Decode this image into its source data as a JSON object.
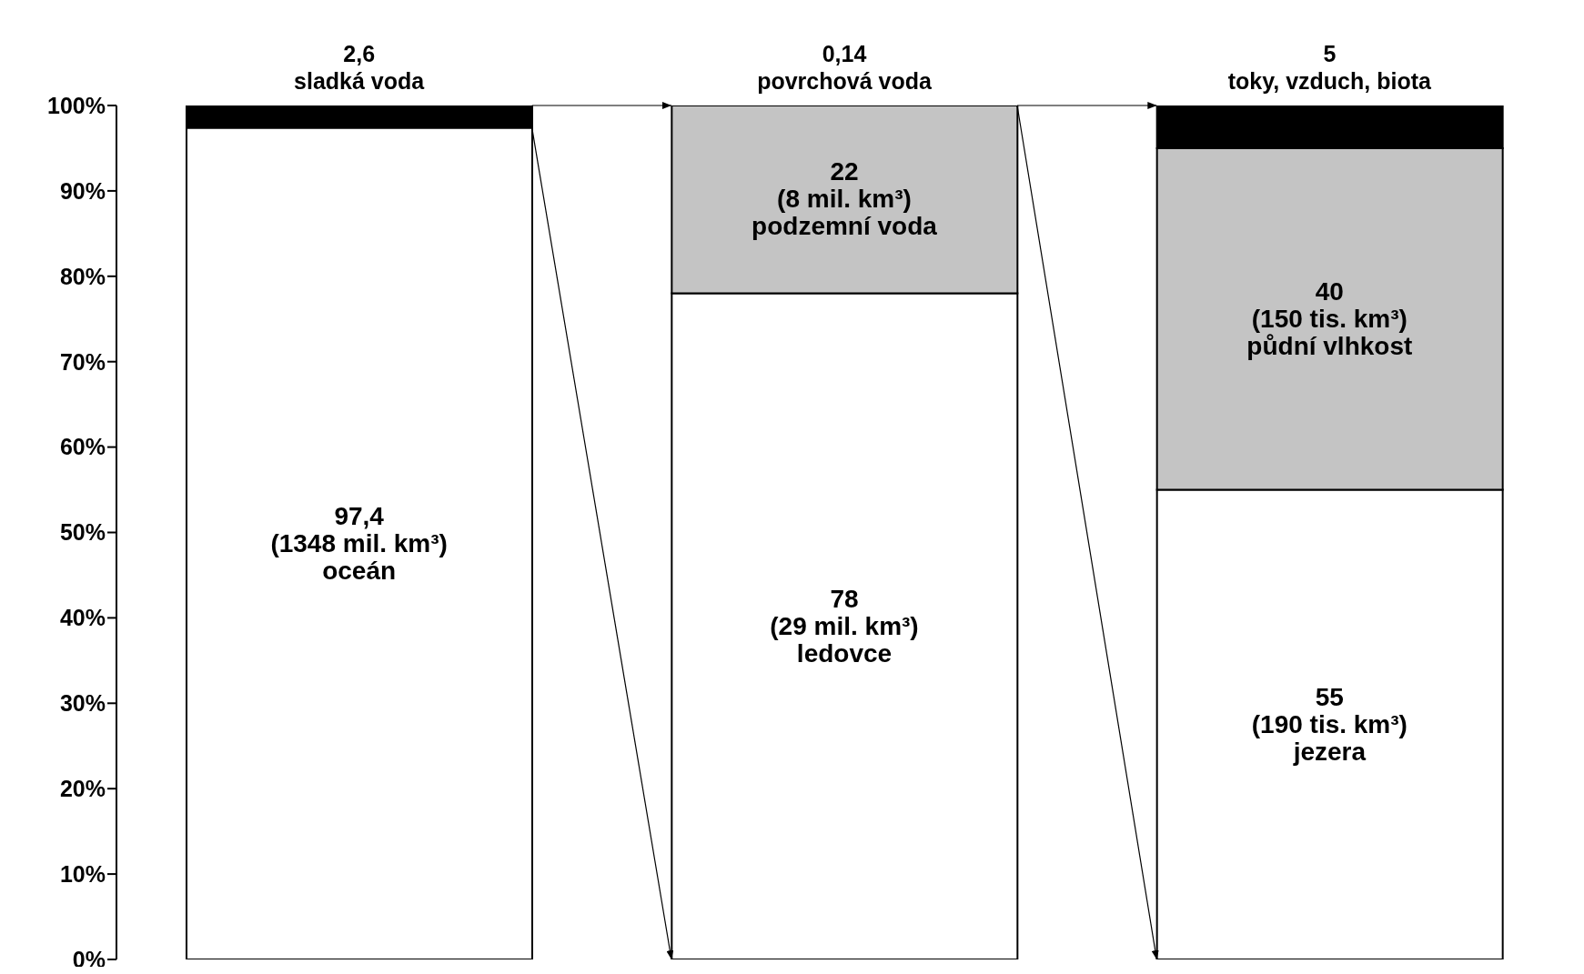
{
  "chart_data": {
    "type": "bar",
    "stacked": true,
    "categories": [
      null,
      null,
      null
    ],
    "series": [
      {
        "color": "#ffffff",
        "values": [
          97.4,
          78,
          55
        ],
        "value_labels": [
          "97,4\n(1348 mil. km³)\noceán",
          "78\n(29 mil. km³)\nledovce",
          "55\n(190 tis. km³)\njezera"
        ]
      },
      {
        "color": "#c4c4c4",
        "values": [
          null,
          22,
          40
        ],
        "value_labels": [
          null,
          "22\n(8 mil. km³)\npodzemní voda",
          "40\n(150 tis. km³)\npůdní vlhkost"
        ]
      },
      {
        "color": "#000000",
        "values": [
          2.6,
          0.14,
          5
        ],
        "value_labels": [
          "2,6\nsladká voda",
          "0,14\npovrchová voda",
          "5\ntoky, vzduch, biota"
        ]
      }
    ],
    "ylim": [
      0,
      100
    ],
    "yticks": [
      {
        "value": 0,
        "label": "0%"
      },
      {
        "value": 10,
        "label": "10%"
      },
      {
        "value": 20,
        "label": "20%"
      },
      {
        "value": 30,
        "label": "30%"
      },
      {
        "value": 40,
        "label": "40%"
      },
      {
        "value": 50,
        "label": "50%"
      },
      {
        "value": 60,
        "label": "60%"
      },
      {
        "value": 70,
        "label": "70%"
      },
      {
        "value": 80,
        "label": "80%"
      },
      {
        "value": 90,
        "label": "90%"
      },
      {
        "value": 100,
        "label": "100%"
      }
    ],
    "grid": false,
    "legend": false
  }
}
